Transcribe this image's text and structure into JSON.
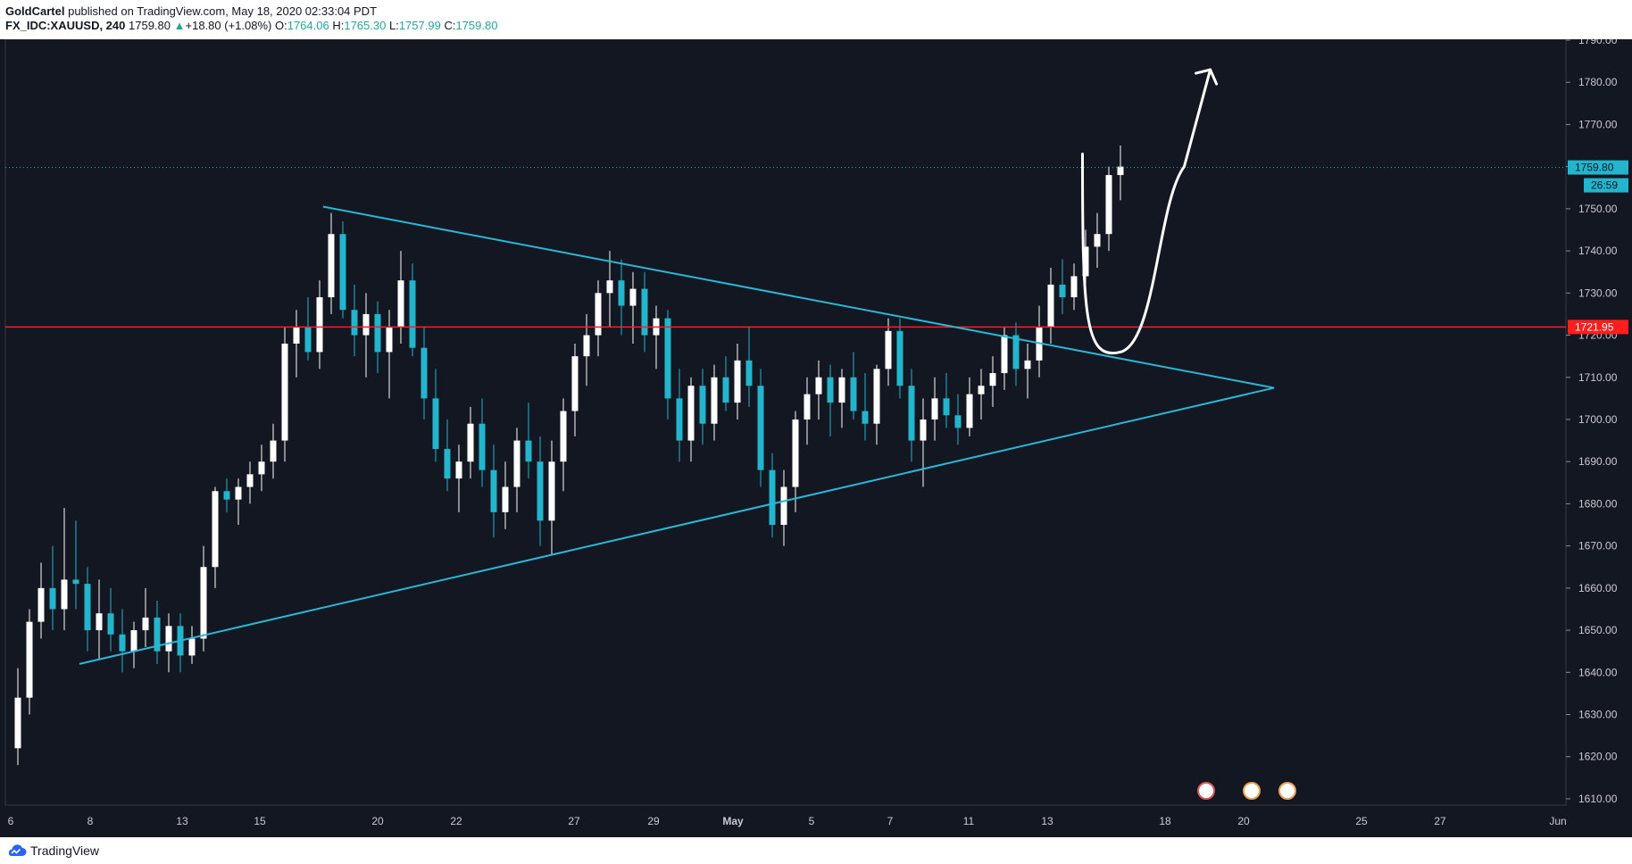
{
  "header": {
    "author": "GoldCartel",
    "published_text": "published on TradingView.com, May 18, 2020 02:33:04 PDT",
    "symbol": "FX_IDC:XAUUSD, 240",
    "last": "1759.80",
    "change_arrow": "▲",
    "change": "+18.80 (+1.08%)",
    "o_label": "O:",
    "o_value": "1764.06",
    "h_label": "H:",
    "h_value": "1765.30",
    "l_label": "L:",
    "l_value": "1757.99",
    "c_label": "C:",
    "c_value": "1759.80"
  },
  "footer": {
    "brand": "TradingView",
    "logo_icon": "tradingview-cloud-icon"
  },
  "colors": {
    "background": "#131722",
    "candle_up": "#ffffff",
    "candle_down": "#22b5cc",
    "trendline": "#29b8d6",
    "horizontal_line": "#ff1e1e",
    "projection": "#ffffff",
    "axis_text": "#c9cbd1",
    "signal_up": "#7ccf3f",
    "signal_down_red": "#e05656",
    "signal_down_yellow": "#f0b912"
  },
  "chart_data": {
    "type": "candlestick",
    "symbol": "FX_IDC:XAUUSD",
    "interval": "240",
    "y_ticks": [
      "1610.00",
      "1620.00",
      "1630.00",
      "1640.00",
      "1650.00",
      "1660.00",
      "1670.00",
      "1680.00",
      "1690.00",
      "1700.00",
      "1710.00",
      "1720.00",
      "1730.00",
      "1740.00",
      "1750.00",
      "1760.00",
      "1770.00",
      "1780.00",
      "1790.00"
    ],
    "ylim": [
      1607,
      1791
    ],
    "x_ticks": [
      "6",
      "8",
      "13",
      "15",
      "20",
      "22",
      "27",
      "29",
      "May",
      "5",
      "7",
      "11",
      "13",
      "18",
      "20",
      "25",
      "27",
      "Jun"
    ],
    "price_labels": {
      "last_price": "1759.80",
      "countdown": "26:59",
      "horizontal_level": "1721.95"
    },
    "horizontal_level": 1721.95,
    "last_price": 1759.8,
    "trendlines": [
      {
        "name": "descending resistance",
        "from": [
          12.9,
          1750.5
        ],
        "to": [
          53.1,
          1707.5
        ]
      },
      {
        "name": "ascending support",
        "from": [
          2.6,
          1642
        ],
        "to": [
          53.1,
          1707.5
        ]
      }
    ],
    "projection_path": [
      [
        45.0,
        1763
      ],
      [
        46.6,
        1716
      ],
      [
        47.8,
        1720
      ],
      [
        49.3,
        1760
      ],
      [
        50.4,
        1783
      ]
    ],
    "event_badges": [
      "4",
      "4",
      "83"
    ],
    "candles_ohlc_approx": [
      [
        1622,
        1641,
        1618,
        1634
      ],
      [
        1634,
        1655,
        1630,
        1652
      ],
      [
        1652,
        1666,
        1648,
        1660
      ],
      [
        1660,
        1670,
        1650,
        1655
      ],
      [
        1655,
        1679,
        1650,
        1662
      ],
      [
        1662,
        1676,
        1655,
        1661
      ],
      [
        1661,
        1665,
        1645,
        1650
      ],
      [
        1650,
        1662,
        1643,
        1654
      ],
      [
        1654,
        1660,
        1645,
        1649
      ],
      [
        1649,
        1655,
        1640,
        1645
      ],
      [
        1645,
        1652,
        1641,
        1650
      ],
      [
        1650,
        1660,
        1646,
        1653
      ],
      [
        1653,
        1657,
        1642,
        1645
      ],
      [
        1645,
        1654,
        1640,
        1651
      ],
      [
        1651,
        1654,
        1640,
        1644
      ],
      [
        1644,
        1651,
        1642,
        1648
      ],
      [
        1648,
        1670,
        1645,
        1665
      ],
      [
        1665,
        1684,
        1660,
        1683
      ],
      [
        1683,
        1686,
        1678,
        1681
      ],
      [
        1681,
        1686,
        1675,
        1684
      ],
      [
        1684,
        1690,
        1680,
        1687
      ],
      [
        1687,
        1694,
        1683,
        1690
      ],
      [
        1690,
        1699,
        1686,
        1695
      ],
      [
        1695,
        1722,
        1690,
        1718
      ],
      [
        1718,
        1726,
        1710,
        1722
      ],
      [
        1722,
        1729,
        1714,
        1716
      ],
      [
        1716,
        1733,
        1712,
        1729
      ],
      [
        1729,
        1749,
        1725,
        1744
      ],
      [
        1744,
        1747,
        1724,
        1726
      ],
      [
        1726,
        1732,
        1715,
        1720
      ],
      [
        1720,
        1730,
        1710,
        1725
      ],
      [
        1725,
        1728,
        1711,
        1716
      ],
      [
        1716,
        1726,
        1705,
        1722
      ],
      [
        1722,
        1740,
        1718,
        1733
      ],
      [
        1733,
        1737,
        1715,
        1717
      ],
      [
        1717,
        1722,
        1700,
        1705
      ],
      [
        1705,
        1712,
        1690,
        1693
      ],
      [
        1693,
        1700,
        1683,
        1686
      ],
      [
        1686,
        1694,
        1678,
        1690
      ],
      [
        1690,
        1703,
        1686,
        1699
      ],
      [
        1699,
        1705,
        1684,
        1688
      ],
      [
        1688,
        1694,
        1672,
        1678
      ],
      [
        1678,
        1690,
        1674,
        1684
      ],
      [
        1684,
        1698,
        1678,
        1695
      ],
      [
        1695,
        1704,
        1686,
        1690
      ],
      [
        1690,
        1696,
        1670,
        1676
      ],
      [
        1676,
        1695,
        1668,
        1690
      ],
      [
        1690,
        1705,
        1683,
        1702
      ],
      [
        1702,
        1718,
        1696,
        1715
      ],
      [
        1715,
        1725,
        1708,
        1720
      ],
      [
        1720,
        1733,
        1715,
        1730
      ],
      [
        1730,
        1740,
        1722,
        1733
      ],
      [
        1733,
        1738,
        1720,
        1727
      ],
      [
        1727,
        1735,
        1718,
        1731
      ],
      [
        1731,
        1735,
        1716,
        1720
      ],
      [
        1720,
        1727,
        1712,
        1724
      ],
      [
        1724,
        1726,
        1700,
        1705
      ],
      [
        1705,
        1712,
        1690,
        1695
      ],
      [
        1695,
        1710,
        1690,
        1708
      ],
      [
        1708,
        1712,
        1694,
        1699
      ],
      [
        1699,
        1713,
        1695,
        1710
      ],
      [
        1710,
        1715,
        1702,
        1704
      ],
      [
        1704,
        1718,
        1700,
        1714
      ],
      [
        1714,
        1722,
        1703,
        1708
      ],
      [
        1708,
        1712,
        1684,
        1688
      ],
      [
        1688,
        1692,
        1672,
        1675
      ],
      [
        1675,
        1688,
        1670,
        1684
      ],
      [
        1684,
        1702,
        1678,
        1700
      ],
      [
        1700,
        1710,
        1694,
        1706
      ],
      [
        1706,
        1714,
        1700,
        1710
      ],
      [
        1710,
        1713,
        1696,
        1704
      ],
      [
        1704,
        1712,
        1698,
        1710
      ],
      [
        1710,
        1716,
        1700,
        1702
      ],
      [
        1702,
        1711,
        1695,
        1699
      ],
      [
        1699,
        1713,
        1694,
        1712
      ],
      [
        1712,
        1724,
        1708,
        1721
      ],
      [
        1721,
        1724,
        1705,
        1708
      ],
      [
        1708,
        1712,
        1690,
        1695
      ],
      [
        1695,
        1705,
        1684,
        1700
      ],
      [
        1700,
        1710,
        1695,
        1705
      ],
      [
        1705,
        1711,
        1698,
        1701
      ],
      [
        1701,
        1706,
        1694,
        1698
      ],
      [
        1698,
        1710,
        1696,
        1706
      ],
      [
        1706,
        1712,
        1700,
        1708
      ],
      [
        1708,
        1715,
        1703,
        1711
      ],
      [
        1711,
        1722,
        1707,
        1720
      ],
      [
        1720,
        1723,
        1708,
        1712
      ],
      [
        1712,
        1718,
        1705,
        1714
      ],
      [
        1714,
        1727,
        1710,
        1722
      ],
      [
        1722,
        1736,
        1718,
        1732
      ],
      [
        1732,
        1738,
        1725,
        1729
      ],
      [
        1729,
        1737,
        1726,
        1734
      ],
      [
        1734,
        1745,
        1730,
        1741
      ],
      [
        1741,
        1749,
        1736,
        1744
      ],
      [
        1744,
        1760,
        1740,
        1758
      ],
      [
        1758,
        1765,
        1752,
        1760
      ]
    ]
  }
}
